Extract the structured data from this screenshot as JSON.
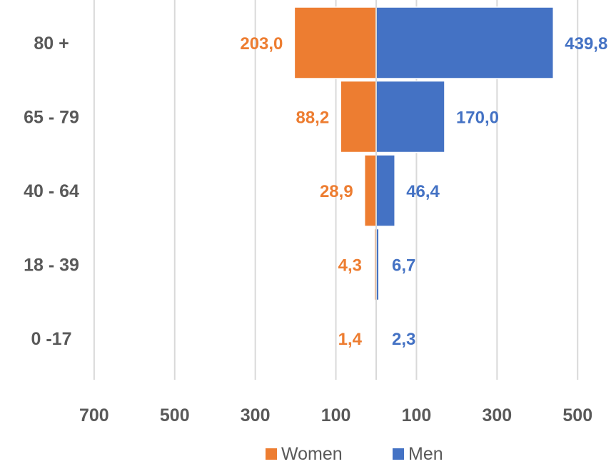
{
  "chart_data": {
    "type": "bar",
    "orientation": "horizontal-diverging",
    "title": "",
    "xlabel": "",
    "ylabel": "",
    "categories": [
      "80 +",
      "65 - 79",
      "40 - 64",
      "18 - 39",
      "0 -17"
    ],
    "series": [
      {
        "name": "Women",
        "color": "#ed7d31",
        "side": "left",
        "values": [
          203.0,
          88.2,
          28.9,
          4.3,
          1.4
        ],
        "labels": [
          "203,0",
          "88,2",
          "28,9",
          "4,3",
          "1,4"
        ]
      },
      {
        "name": "Men",
        "color": "#4472c4",
        "side": "right",
        "values": [
          439.8,
          170.0,
          46.4,
          6.7,
          2.3
        ],
        "labels": [
          "439,8",
          "170,0",
          "46,4",
          "6,7",
          "2,3"
        ]
      }
    ],
    "xlim": [
      -700,
      500
    ],
    "x_ticks": [
      -700,
      -500,
      -300,
      -100,
      100,
      300,
      500
    ],
    "x_tick_labels": [
      "700",
      "500",
      "300",
      "100",
      "100",
      "300",
      "500"
    ],
    "grid": true,
    "legend": "bottom"
  }
}
